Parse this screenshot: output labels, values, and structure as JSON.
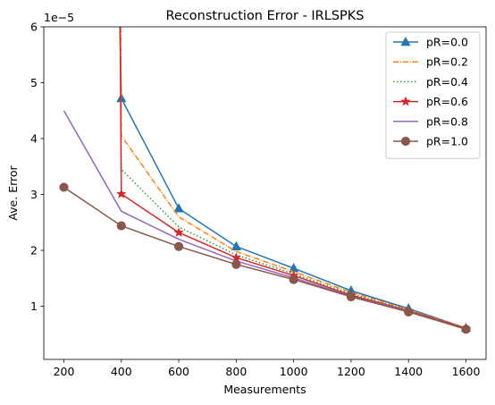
{
  "chart_data": {
    "type": "line",
    "title": "Reconstruction Error - IRLSPKS",
    "xlabel": "Measurements",
    "ylabel": "Ave. Error",
    "y_offset_label": "1e−5",
    "xlim": [
      130,
      1670
    ],
    "ylim": [
      0.05,
      6
    ],
    "xticks": [
      200,
      400,
      600,
      800,
      1000,
      1200,
      1400,
      1600
    ],
    "xtick_labels": [
      "200",
      "400",
      "600",
      "800",
      "1000",
      "1200",
      "1400",
      "1600"
    ],
    "yticks": [
      1,
      2,
      3,
      4,
      5,
      6
    ],
    "ytick_labels": [
      "1",
      "2",
      "3",
      "4",
      "5",
      "6"
    ],
    "legend_position": "top-right",
    "grid": false,
    "series": [
      {
        "name": "pR=0.0",
        "color": "#1f77b4",
        "line_style": "solid",
        "marker": "triangle",
        "x": [
          393,
          400,
          600,
          800,
          1000,
          1200,
          1400,
          1600
        ],
        "y": [
          6.5,
          4.72,
          2.75,
          2.07,
          1.68,
          1.28,
          0.96,
          0.61
        ]
      },
      {
        "name": "pR=0.2",
        "color": "#ff7f0e",
        "line_style": "dashdot",
        "marker": "none",
        "x": [
          397,
          400,
          600,
          800,
          1000,
          1200,
          1400,
          1600
        ],
        "y": [
          6.5,
          4.05,
          2.6,
          1.98,
          1.62,
          1.25,
          0.94,
          0.61
        ]
      },
      {
        "name": "pR=0.4",
        "color": "#2ca02c",
        "line_style": "dotted",
        "marker": "none",
        "x": [
          396,
          400,
          600,
          800,
          1000,
          1200,
          1400,
          1600
        ],
        "y": [
          6.5,
          3.45,
          2.42,
          1.92,
          1.58,
          1.22,
          0.93,
          0.6
        ]
      },
      {
        "name": "pR=0.6",
        "color": "#d62728",
        "line_style": "solid",
        "marker": "star",
        "x": [
          395,
          400,
          600,
          800,
          1000,
          1200,
          1400,
          1600
        ],
        "y": [
          6.5,
          3.01,
          2.32,
          1.87,
          1.55,
          1.2,
          0.92,
          0.6
        ]
      },
      {
        "name": "pR=0.8",
        "color": "#9467bd",
        "line_style": "solid",
        "marker": "none",
        "x": [
          200,
          400,
          600,
          800,
          1000,
          1200,
          1400,
          1600
        ],
        "y": [
          4.5,
          2.7,
          2.2,
          1.81,
          1.51,
          1.18,
          0.91,
          0.59
        ]
      },
      {
        "name": "pR=1.0",
        "color": "#8c564b",
        "line_style": "solid",
        "marker": "circle",
        "x": [
          200,
          400,
          600,
          800,
          1000,
          1200,
          1400,
          1600
        ],
        "y": [
          3.13,
          2.44,
          2.07,
          1.75,
          1.48,
          1.17,
          0.9,
          0.59
        ]
      }
    ]
  }
}
